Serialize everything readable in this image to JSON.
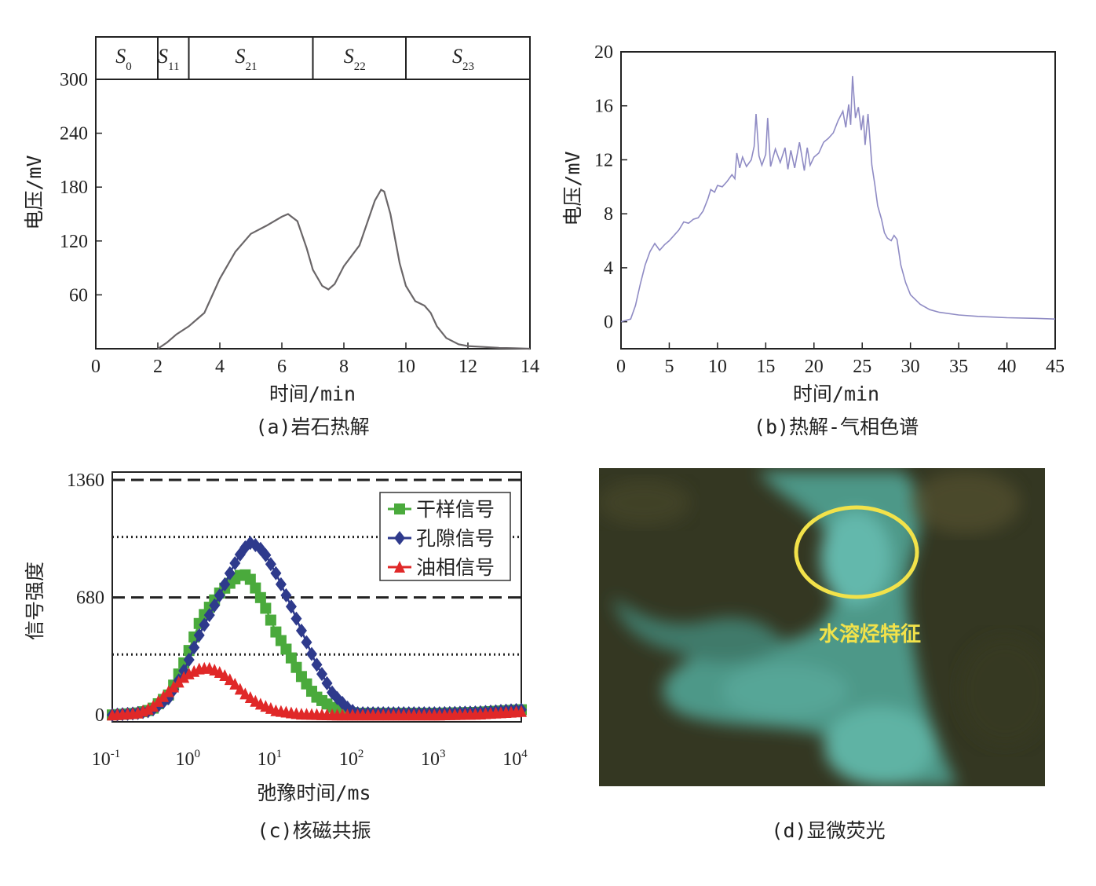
{
  "chart_data": [
    {
      "type": "line",
      "caption": "(a)岩石热解",
      "xlabel": "时间/min",
      "ylabel": "电压/mV",
      "xlim": [
        0,
        14
      ],
      "ylim": [
        0,
        300
      ],
      "xticks": [
        0,
        2,
        4,
        6,
        8,
        10,
        12,
        14
      ],
      "yticks": [
        60,
        120,
        180,
        240,
        300
      ],
      "segments": [
        {
          "label": "S",
          "sub": "0",
          "from": 0,
          "to": 2
        },
        {
          "label": "S",
          "sub": "11",
          "from": 2,
          "to": 3
        },
        {
          "label": "S",
          "sub": "21",
          "from": 3,
          "to": 7
        },
        {
          "label": "S",
          "sub": "22",
          "from": 7,
          "to": 10
        },
        {
          "label": "S",
          "sub": "23",
          "from": 10,
          "to": 14
        }
      ],
      "color": "#6a6668",
      "x": [
        2.0,
        2.3,
        2.6,
        3.0,
        3.5,
        4.0,
        4.5,
        5.0,
        5.5,
        6.0,
        6.2,
        6.5,
        6.8,
        7.0,
        7.3,
        7.5,
        7.7,
        8.0,
        8.5,
        9.0,
        9.2,
        9.3,
        9.5,
        9.8,
        10.0,
        10.3,
        10.6,
        10.8,
        11.0,
        11.3,
        11.7,
        12.0,
        12.5,
        13.0,
        13.5,
        14.0
      ],
      "y": [
        0,
        7,
        16,
        25,
        40,
        78,
        108,
        128,
        137,
        147,
        150,
        142,
        112,
        88,
        70,
        66,
        72,
        92,
        115,
        165,
        177,
        175,
        150,
        95,
        70,
        53,
        48,
        40,
        25,
        12,
        5,
        3,
        2,
        1,
        0.5,
        0
      ]
    },
    {
      "type": "line",
      "caption": "(b)热解-气相色谱",
      "xlabel": "时间/min",
      "ylabel": "电压/mV",
      "xlim": [
        0,
        45
      ],
      "ylim": [
        -2,
        20
      ],
      "xticks": [
        0,
        5,
        10,
        15,
        20,
        25,
        30,
        35,
        40,
        45
      ],
      "yticks": [
        0,
        4,
        8,
        12,
        16,
        20
      ],
      "color": "#8f8bc4",
      "x": [
        0,
        1,
        1.5,
        2,
        2.5,
        3,
        3.5,
        4,
        4.5,
        5,
        6,
        6.5,
        7,
        7.5,
        8,
        8.5,
        9,
        9.3,
        9.7,
        10,
        10.5,
        11,
        11.5,
        11.8,
        12,
        12.3,
        12.6,
        13,
        13.5,
        13.8,
        14,
        14.3,
        14.6,
        15,
        15.2,
        15.5,
        16,
        16.5,
        17,
        17.3,
        17.6,
        18,
        18.5,
        19,
        19.3,
        19.6,
        20,
        20.5,
        21,
        21.5,
        22,
        22.5,
        23,
        23.3,
        23.6,
        23.8,
        24,
        24.3,
        24.6,
        24.9,
        25.1,
        25.3,
        25.6,
        26,
        26.3,
        26.6,
        27,
        27.3,
        27.6,
        28,
        28.3,
        28.6,
        29,
        29.5,
        30,
        31,
        32,
        33,
        35,
        37,
        40,
        43,
        45
      ],
      "y": [
        0,
        0.2,
        1.2,
        2.8,
        4.2,
        5.2,
        5.8,
        5.3,
        5.7,
        6.0,
        6.8,
        7.4,
        7.3,
        7.6,
        7.7,
        8.2,
        9.1,
        9.8,
        9.6,
        10.1,
        10.0,
        10.4,
        10.9,
        10.6,
        12.5,
        11.4,
        12.2,
        11.5,
        12.0,
        13.0,
        15.4,
        12.3,
        11.6,
        12.4,
        15.1,
        11.5,
        12.8,
        11.8,
        12.9,
        11.3,
        12.7,
        11.4,
        13.3,
        11.2,
        12.9,
        11.6,
        12.2,
        12.5,
        13.3,
        13.6,
        14.0,
        14.9,
        15.6,
        14.4,
        16.1,
        14.6,
        18.2,
        15.1,
        15.9,
        14.2,
        15.3,
        13.1,
        15.4,
        11.6,
        10.2,
        8.6,
        7.6,
        6.6,
        6.2,
        6.0,
        6.4,
        6.1,
        4.2,
        2.9,
        2.0,
        1.3,
        0.9,
        0.7,
        0.5,
        0.4,
        0.3,
        0.25,
        0.2
      ]
    },
    {
      "type": "line",
      "caption": "(c)核磁共振",
      "xlabel": "弛豫时间/ms",
      "ylabel": "信号强度",
      "xscale": "log",
      "xlim": [
        0.1,
        10000
      ],
      "ylim": [
        -40,
        1360
      ],
      "xticks": [
        "10",
        "10",
        "10",
        "10",
        "10",
        "10"
      ],
      "xtick_exps": [
        "-1",
        "0",
        "1",
        "2",
        "3",
        "4"
      ],
      "yticks": [
        0,
        680,
        1360
      ],
      "legend": "top-right",
      "series": [
        {
          "name": "干样信号",
          "color": "#4aaa3c",
          "marker": "square",
          "x": [
            0.1,
            0.2,
            0.3,
            0.5,
            0.8,
            1.2,
            2,
            3,
            4,
            5,
            7,
            10,
            15,
            20,
            30,
            50,
            80,
            100,
            300,
            1000,
            3000,
            10000
          ],
          "y": [
            0,
            10,
            30,
            120,
            330,
            550,
            700,
            780,
            820,
            780,
            650,
            480,
            340,
            230,
            110,
            40,
            15,
            10,
            10,
            10,
            15,
            30
          ]
        },
        {
          "name": "孔隙信号",
          "color": "#2e3a8c",
          "marker": "diamond",
          "x": [
            0.1,
            0.2,
            0.3,
            0.5,
            0.8,
            1.2,
            2,
            3,
            4,
            5,
            7,
            10,
            15,
            20,
            30,
            50,
            80,
            100,
            300,
            1000,
            3000,
            10000
          ],
          "y": [
            0,
            10,
            25,
            100,
            280,
            480,
            680,
            860,
            960,
            1000,
            950,
            820,
            640,
            500,
            310,
            120,
            30,
            10,
            10,
            10,
            15,
            30
          ]
        },
        {
          "name": "油相信号",
          "color": "#e02828",
          "marker": "triangle",
          "x": [
            0.1,
            0.2,
            0.3,
            0.5,
            0.8,
            1.2,
            1.6,
            2.2,
            3,
            4,
            6,
            10,
            20,
            50,
            100,
            300,
            1000,
            3000,
            10000
          ],
          "y": [
            0,
            10,
            40,
            140,
            230,
            270,
            270,
            240,
            190,
            130,
            70,
            25,
            5,
            0,
            0,
            0,
            0,
            5,
            20
          ]
        }
      ],
      "reference_lines": [
        {
          "y": 1360,
          "style": "dashed"
        },
        {
          "y": 1030,
          "style": "dotted"
        },
        {
          "y": 680,
          "style": "dashed"
        },
        {
          "y": 350,
          "style": "dotted"
        }
      ]
    }
  ],
  "micrograph": {
    "caption": "(d)显微荧光",
    "annotation": "水溶烃特征",
    "circle_color": "#f2e24a"
  }
}
